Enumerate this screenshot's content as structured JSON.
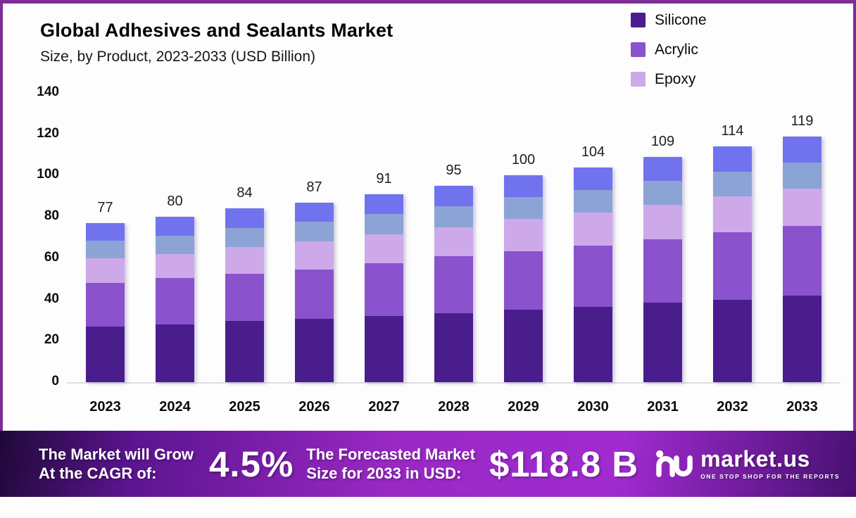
{
  "page": {
    "background": "#fdfdfd",
    "frame_border_color": "#7d2d96"
  },
  "header": {
    "title": "Global Adhesives and Sealants Market",
    "subtitle": "Size, by Product, 2023-2033 (USD Billion)"
  },
  "legend": {
    "items": [
      {
        "label": "Silicone",
        "color": "#4a1d8d"
      },
      {
        "label": "Acrylic",
        "color": "#8a52cc"
      },
      {
        "label": "Epoxy",
        "color": "#cda9ea"
      }
    ]
  },
  "chart_data": {
    "type": "bar",
    "stacked": true,
    "title": "Global Adhesives and Sealants Market Size, by Product, 2023-2033 (USD Billion)",
    "xlabel": "",
    "ylabel": "USD Billion",
    "grid": false,
    "legend_position": "top-right",
    "categories": [
      "2023",
      "2024",
      "2025",
      "2026",
      "2027",
      "2028",
      "2029",
      "2030",
      "2031",
      "2032",
      "2033"
    ],
    "series": [
      {
        "name": "Silicone",
        "color": "#4a1d8d",
        "values": [
          27,
          28,
          29.5,
          30.5,
          32,
          33.5,
          35,
          36.5,
          38.5,
          40,
          42
        ]
      },
      {
        "name": "Acrylic",
        "color": "#8a52cc",
        "values": [
          21,
          22.5,
          23,
          24,
          25.5,
          27.5,
          28.5,
          29.5,
          30.5,
          32.5,
          33.5
        ]
      },
      {
        "name": "Epoxy",
        "color": "#cda9ea",
        "values": [
          12,
          11.5,
          13,
          13.5,
          14,
          14,
          15.5,
          16,
          17,
          17.5,
          18
        ]
      },
      {
        "name": "unlabeled-steel-blue",
        "color": "#8ca3d6",
        "values": [
          8.5,
          9,
          9.25,
          9.5,
          9.75,
          10,
          10.5,
          11,
          11.5,
          12,
          12.75
        ]
      },
      {
        "name": "unlabeled-periwinkle",
        "color": "#7173ee",
        "values": [
          8.5,
          9,
          9.25,
          9.5,
          9.75,
          10,
          10.5,
          11,
          11.5,
          12,
          12.75
        ]
      }
    ],
    "totals": [
      77,
      80,
      84,
      87,
      91,
      95,
      100,
      104,
      109,
      114,
      119
    ],
    "y_axis": {
      "min": 0,
      "max": 140,
      "tick_step": 20,
      "ticks": [
        0,
        20,
        40,
        60,
        80,
        100,
        120,
        140
      ]
    }
  },
  "banner": {
    "left_label_line1": "The Market will Grow",
    "left_label_line2": "At the CAGR of:",
    "cagr_value": "4.5%",
    "right_label_line1": "The Forecasted Market",
    "right_label_line2": "Size for 2033 in USD:",
    "forecast_value": "$118.8 B"
  },
  "logo": {
    "name": "market.us",
    "tagline": "ONE STOP SHOP FOR THE REPORTS"
  }
}
